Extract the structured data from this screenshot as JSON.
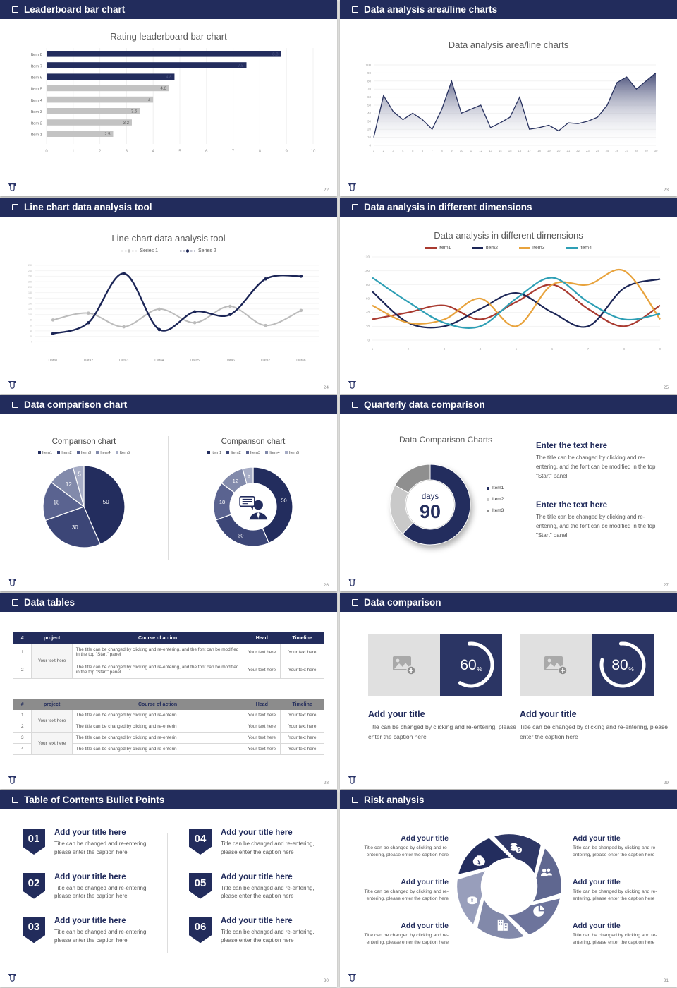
{
  "window": {
    "background": "#e7e7e5",
    "header_bar_color": "#222c5c"
  },
  "branding": {
    "logo": "university-emblem",
    "navy": "#222c5c"
  },
  "slides": [
    {
      "header": "Leaderboard bar chart",
      "page": "22",
      "chart_data": {
        "type": "bar",
        "orientation": "horizontal",
        "title": "Rating leaderboard bar chart",
        "categories": [
          "Item 1",
          "Item 2",
          "Item 3",
          "Item 4",
          "Item 5",
          "Item 6",
          "Item 7",
          "Item 8"
        ],
        "values": [
          2.5,
          3.2,
          3.5,
          4,
          4.6,
          4.8,
          7.5,
          8.8
        ],
        "value_labels": [
          "2.5",
          "3.2",
          "3.5",
          "4",
          "4.6",
          "4.8",
          "7.5",
          "8.8"
        ],
        "bar_colors": [
          "#c3c3c3",
          "#c3c3c3",
          "#c3c3c3",
          "#c3c3c3",
          "#c3c3c3",
          "#232d5e",
          "#232d5e",
          "#232d5e"
        ],
        "xlim": [
          0,
          10
        ],
        "x_ticks": [
          0,
          1,
          2,
          3,
          4,
          5,
          6,
          7,
          8,
          9,
          10
        ],
        "grid": true
      }
    },
    {
      "header": "Data analysis area/line charts",
      "page": "23",
      "chart_data": {
        "type": "area",
        "title": "Data analysis area/line charts",
        "x": [
          1,
          2,
          3,
          4,
          5,
          6,
          7,
          8,
          9,
          10,
          11,
          12,
          13,
          14,
          15,
          16,
          17,
          18,
          19,
          20,
          21,
          22,
          23,
          24,
          25,
          26,
          27,
          28,
          29,
          30
        ],
        "values": [
          10,
          62,
          42,
          32,
          40,
          32,
          20,
          45,
          80,
          40,
          45,
          50,
          22,
          28,
          35,
          60,
          20,
          22,
          25,
          18,
          28,
          27,
          30,
          35,
          50,
          78,
          85,
          70,
          80,
          90
        ],
        "ylim": [
          0,
          100
        ],
        "y_ticks": [
          0,
          10,
          20,
          30,
          40,
          50,
          60,
          70,
          80,
          90,
          100
        ],
        "line_color": "#27315f",
        "fill_gradient": [
          "#39406e",
          "#ffffff"
        ],
        "grid": true
      }
    },
    {
      "header": "Line chart data analysis tool",
      "page": "24",
      "chart_data": {
        "type": "line",
        "title": "Line chart data analysis tool",
        "categories": [
          "Data1",
          "Data2",
          "Data3",
          "Data4",
          "Data5",
          "Data6",
          "Data7",
          "Data8"
        ],
        "series": [
          {
            "name": "Series 1",
            "color": "#bcbcbc",
            "legend_style": "dotted",
            "values": [
              80,
              105,
              55,
              120,
              70,
              130,
              60,
              115
            ]
          },
          {
            "name": "Series 2",
            "color": "#1b2556",
            "legend_style": "dot-line",
            "values": [
              30,
              70,
              250,
              45,
              110,
              100,
              230,
              240
            ]
          }
        ],
        "ylim": [
          -30,
          290
        ],
        "y_ticks": [
          0,
          20,
          40,
          60,
          80,
          100,
          120,
          140,
          160,
          180,
          200,
          220,
          240,
          260,
          280
        ],
        "smooth": true,
        "markers": true,
        "legend_position": "top"
      }
    },
    {
      "header": "Data analysis in different dimensions",
      "page": "25",
      "chart_data": {
        "type": "line",
        "title": "Data analysis in different dimensions",
        "x": [
          1,
          2,
          3,
          4,
          5,
          6,
          7,
          8,
          9
        ],
        "series": [
          {
            "name": "Item1",
            "color": "#a93a30",
            "values": [
              30,
              40,
              50,
              30,
              55,
              80,
              45,
              20,
              50
            ]
          },
          {
            "name": "Item2",
            "color": "#1b2556",
            "values": [
              70,
              25,
              20,
              45,
              68,
              40,
              20,
              75,
              88
            ]
          },
          {
            "name": "Item3",
            "color": "#e8a33d",
            "values": [
              50,
              25,
              30,
              60,
              20,
              80,
              80,
              100,
              30
            ]
          },
          {
            "name": "Item4",
            "color": "#2e9fb5",
            "values": [
              90,
              55,
              25,
              20,
              60,
              90,
              55,
              30,
              38
            ]
          }
        ],
        "ylim": [
          0,
          120
        ],
        "y_ticks": [
          0,
          20,
          40,
          60,
          80,
          100,
          120
        ],
        "smooth": true,
        "legend_position": "top"
      }
    },
    {
      "header": "Data comparison chart",
      "page": "26",
      "chart_data": [
        {
          "type": "pie",
          "title": "Comparison chart",
          "legend": [
            "Item1",
            "Item2",
            "Item3",
            "Item4",
            "Item5"
          ],
          "values": [
            50,
            30,
            18,
            12,
            5
          ],
          "labels": [
            "50",
            "30",
            "18",
            "12",
            "5"
          ],
          "colors": [
            "#232d5e",
            "#3c4677",
            "#5a6390",
            "#828aab",
            "#a7adc6"
          ]
        },
        {
          "type": "donut",
          "title": "Comparison chart",
          "legend": [
            "Item1",
            "Item2",
            "Item3",
            "Item4",
            "Item5"
          ],
          "values": [
            50,
            30,
            18,
            12,
            5
          ],
          "labels": [
            "50",
            "30",
            "18",
            "12",
            "5"
          ],
          "colors": [
            "#232d5e",
            "#3c4677",
            "#5a6390",
            "#828aab",
            "#a7adc6"
          ],
          "center_icon": "businessman-icon"
        }
      ]
    },
    {
      "header": "Quarterly data comparison",
      "page": "27",
      "chart_data": {
        "type": "donut",
        "title": "Data Comparison Charts",
        "center_label": "days",
        "center_value": "90",
        "legend": [
          "Item1",
          "Item2",
          "Item3"
        ],
        "values": [
          62,
          21,
          17
        ],
        "colors": [
          "#232d5e",
          "#c9c9c9",
          "#8f8f8f"
        ]
      },
      "text_blocks": [
        {
          "heading": "Enter the text here",
          "body": "The title can be changed by clicking and re-entering, and the font can be modified in the top \"Start\" panel"
        },
        {
          "heading": "Enter the text here",
          "body": "The title can be changed by clicking and re-entering, and the font can be modified in the top \"Start\" panel"
        }
      ]
    },
    {
      "header": "Data tables",
      "page": "28",
      "table1": {
        "style": "navy-header",
        "headers": [
          "#",
          "project",
          "Course of action",
          "Head",
          "Timeline"
        ],
        "project": "Your text here",
        "rows": [
          {
            "num": "1",
            "action": "The title can be changed by clicking and re-entering, and the font can be modified in the top \"Start\" panel",
            "head": "Your text here",
            "timeline": "Your text here"
          },
          {
            "num": "2",
            "action": "The title can be changed by clicking and re-entering, and the font can be modified in the top \"Start\" panel",
            "head": "Your text here",
            "timeline": "Your text here"
          }
        ]
      },
      "table2": {
        "style": "gray-header",
        "headers": [
          "#",
          "project",
          "Course of action",
          "Head",
          "Timeline"
        ],
        "projects": [
          "Your text here",
          "Your text here"
        ],
        "rows": [
          {
            "num": "1",
            "action": "The title can be changed by clicking and re-enterin",
            "head": "Your text here",
            "timeline": "Your text here"
          },
          {
            "num": "2",
            "action": "The title can be changed by clicking and re-enterin",
            "head": "Your text here",
            "timeline": "Your text here"
          },
          {
            "num": "3",
            "action": "The title can be changed by clicking and re-enterin",
            "head": "Your text here",
            "timeline": "Your text here"
          },
          {
            "num": "4",
            "action": "The title can be changed by clicking and re-enterin",
            "head": "Your text here",
            "timeline": "Your text here"
          }
        ]
      }
    },
    {
      "header": "Data comparison",
      "page": "29",
      "items": [
        {
          "percent": 60,
          "percent_label": "60",
          "title": "Add your title",
          "caption": "Title can be changed by clicking and re-entering, please enter the caption here",
          "placeholder": "image-placeholder-icon"
        },
        {
          "percent": 80,
          "percent_label": "80",
          "title": "Add your title",
          "caption": "Title can be changed by clicking and re-entering, please enter the caption here",
          "placeholder": "image-placeholder-icon"
        }
      ]
    },
    {
      "header": "Table of Contents Bullet Points",
      "page": "30",
      "items": [
        {
          "num": "01",
          "title": "Add your title here",
          "caption": "Title can be changed and re-entering, please enter the caption here"
        },
        {
          "num": "02",
          "title": "Add your title here",
          "caption": "Title can be changed and re-entering, please enter the caption here"
        },
        {
          "num": "03",
          "title": "Add your title here",
          "caption": "Title can be changed and re-entering, please enter the caption here"
        },
        {
          "num": "04",
          "title": "Add your title here",
          "caption": "Title can be changed and re-entering, please enter the caption here"
        },
        {
          "num": "05",
          "title": "Add your title here",
          "caption": "Title can be changed and re-entering, please enter the caption here"
        },
        {
          "num": "06",
          "title": "Add your title here",
          "caption": "Title can be changed and re-entering, please enter the caption here"
        }
      ]
    },
    {
      "header": "Risk analysis",
      "page": "31",
      "wheel": {
        "segment_colors": [
          "#232d5e",
          "#2e3766",
          "#5f6790",
          "#6d749c",
          "#8289aa",
          "#989ebb"
        ],
        "icons": [
          "money-bag-icon",
          "coins-icon",
          "people-icon",
          "pie-chart-icon",
          "building-icon",
          "cash-cap-icon"
        ]
      },
      "blocks": [
        {
          "title": "Add your title",
          "caption": "Title can be changed by clicking and re-entering, please enter the caption here"
        },
        {
          "title": "Add your title",
          "caption": "Title can be changed by clicking and re-entering, please enter the caption here"
        },
        {
          "title": "Add your title",
          "caption": "Title can be changed by clicking and re-entering, please enter the caption here"
        },
        {
          "title": "Add your title",
          "caption": "Title can be changed by clicking and re-entering, please enter the caption here"
        },
        {
          "title": "Add your title",
          "caption": "Title can be changed by clicking and re-entering, please enter the caption here"
        },
        {
          "title": "Add your title",
          "caption": "Title can be changed by clicking and re-entering, please enter the caption here"
        }
      ]
    }
  ]
}
